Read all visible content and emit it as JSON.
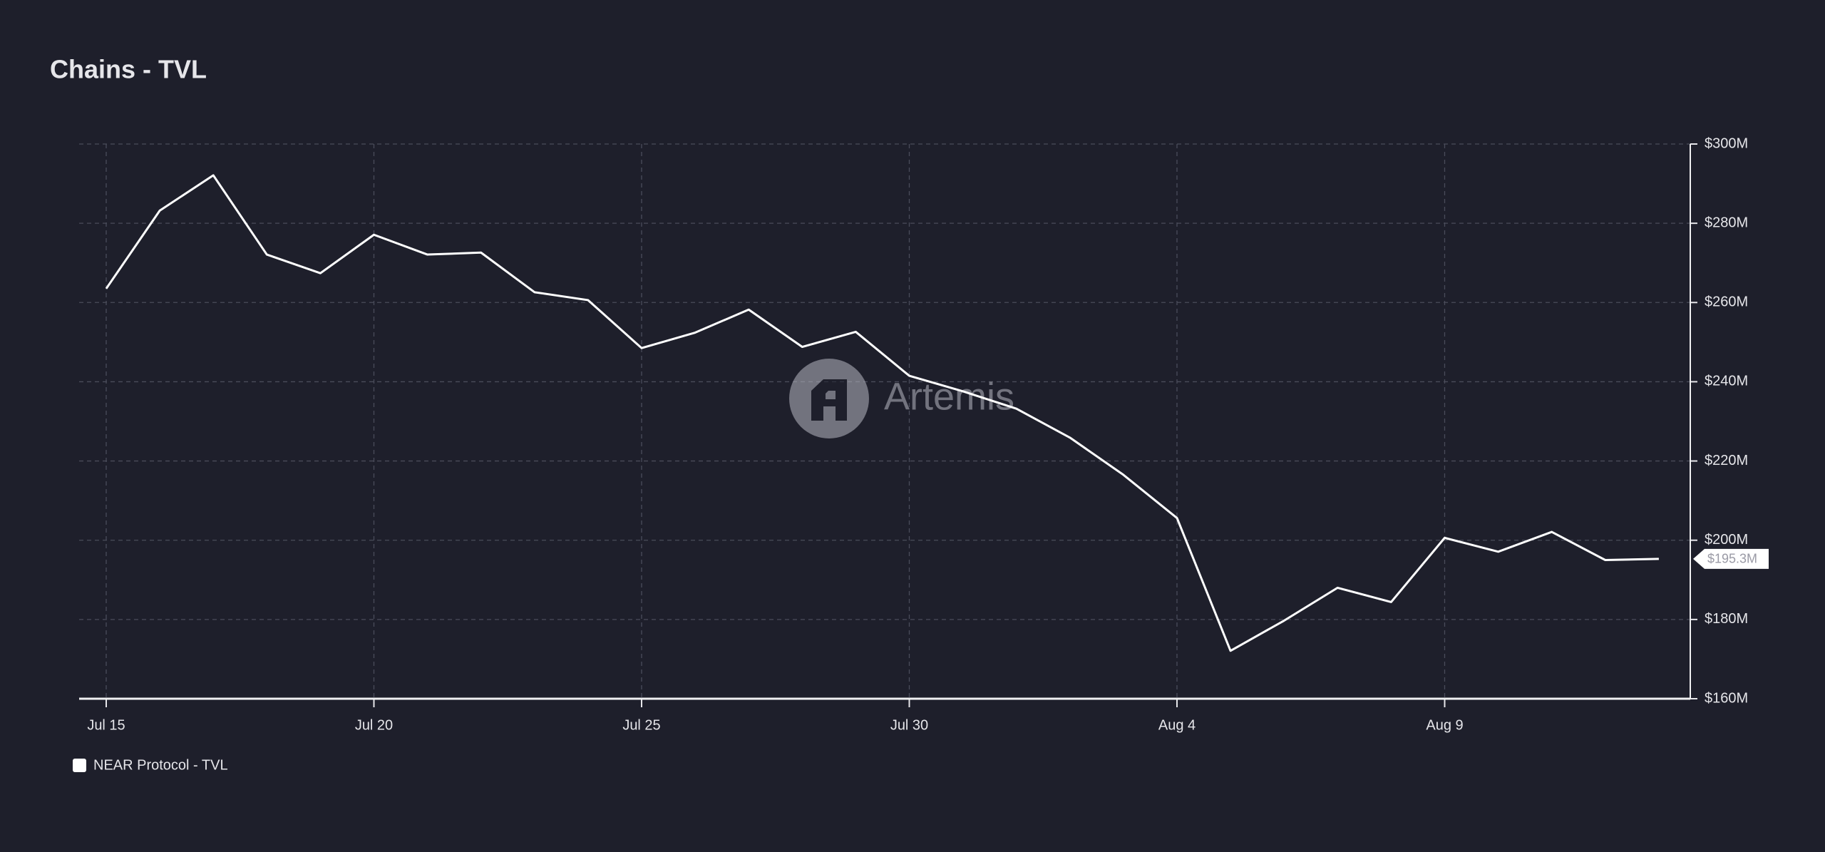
{
  "chart_data": {
    "type": "line",
    "title": "Chains - TVL",
    "watermark": "Artemis",
    "categories": [
      "Jul 15",
      "Jul 16",
      "Jul 17",
      "Jul 18",
      "Jul 19",
      "Jul 20",
      "Jul 21",
      "Jul 22",
      "Jul 23",
      "Jul 24",
      "Jul 25",
      "Jul 26",
      "Jul 27",
      "Jul 28",
      "Jul 29",
      "Jul 30",
      "Jul 31",
      "Aug 1",
      "Aug 2",
      "Aug 3",
      "Aug 4",
      "Aug 5",
      "Aug 6",
      "Aug 7",
      "Aug 8",
      "Aug 9",
      "Aug 10",
      "Aug 11",
      "Aug 12",
      "Aug 13"
    ],
    "xtick_every": 5,
    "series": [
      {
        "name": "NEAR Protocol - TVL",
        "color": "#ffffff",
        "values": [
          263.5,
          283.2,
          292.1,
          272.1,
          267.4,
          277.1,
          272.1,
          272.6,
          262.6,
          260.6,
          248.5,
          252.4,
          258.2,
          248.8,
          252.6,
          241.5,
          237.6,
          233.2,
          225.9,
          216.5,
          205.6,
          172.1,
          179.7,
          188.0,
          184.4,
          200.6,
          197.1,
          202.1,
          195.0,
          195.3
        ],
        "value_labels": [
          null,
          null,
          null,
          null,
          null,
          null,
          null,
          null,
          null,
          null,
          null,
          null,
          null,
          null,
          null,
          null,
          null,
          null,
          null,
          null,
          null,
          null,
          null,
          null,
          null,
          null,
          null,
          null,
          null,
          "$195.3M"
        ]
      }
    ],
    "ylim": [
      160,
      300
    ],
    "yticks": [
      {
        "value": 160,
        "label": "$160M"
      },
      {
        "value": 180,
        "label": "$180M"
      },
      {
        "value": 200,
        "label": "$200M"
      },
      {
        "value": 220,
        "label": "$220M"
      },
      {
        "value": 240,
        "label": "$240M"
      },
      {
        "value": 260,
        "label": "$260M"
      },
      {
        "value": 280,
        "label": "$280M"
      },
      {
        "value": 300,
        "label": "$300M"
      }
    ],
    "y_axis_side": "right",
    "grid": true
  }
}
